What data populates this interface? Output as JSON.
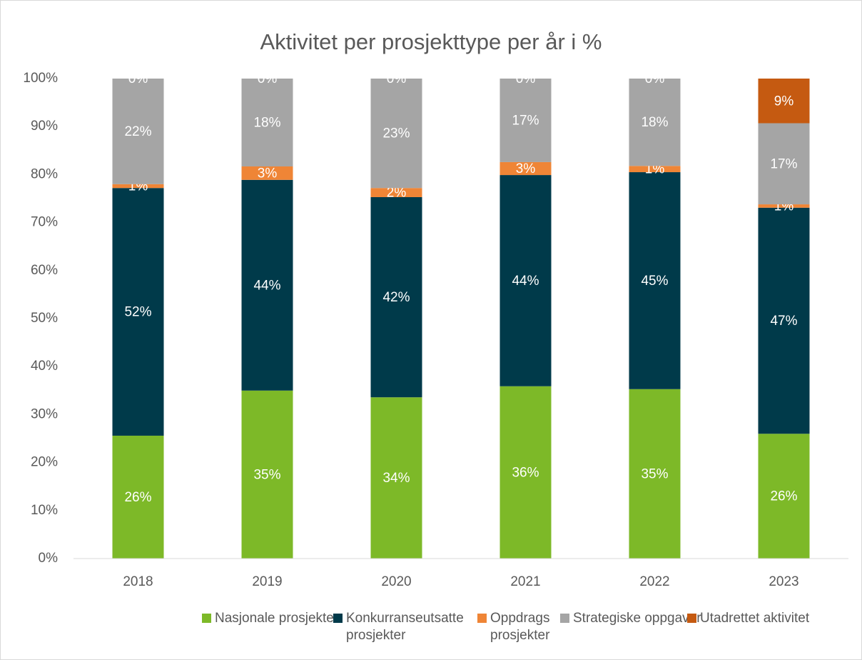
{
  "chart_data": {
    "type": "stacked_bar",
    "title": "Aktivitet per prosjekttype per år i %",
    "categories": [
      "2018",
      "2019",
      "2020",
      "2021",
      "2022",
      "2023"
    ],
    "series": [
      {
        "name": "Nasjonale prosjekter",
        "color": "#7db928",
        "values": [
          25.6,
          35.0,
          33.6,
          35.9,
          35.3,
          26.0
        ],
        "value_labels": [
          "26%",
          "35%",
          "34%",
          "36%",
          "35%",
          "26%"
        ]
      },
      {
        "name": "Konkurranseutsatte prosjekter",
        "color": "#003a4a",
        "values": [
          51.6,
          43.9,
          41.7,
          44.0,
          45.2,
          47.1
        ],
        "value_labels": [
          "52%",
          "44%",
          "42%",
          "44%",
          "45%",
          "47%"
        ]
      },
      {
        "name": "Oppdrags prosjekter",
        "color": "#ef8536",
        "values": [
          0.8,
          2.8,
          1.9,
          2.7,
          1.3,
          0.7
        ],
        "value_labels": [
          "1%",
          "3%",
          "2%",
          "3%",
          "1%",
          "1%"
        ]
      },
      {
        "name": "Strategiske oppgaver",
        "color": "#a5a5a5",
        "values": [
          22.0,
          18.3,
          22.8,
          17.4,
          18.2,
          16.9
        ],
        "value_labels": [
          "22%",
          "18%",
          "23%",
          "17%",
          "18%",
          "17%"
        ]
      },
      {
        "name": "Utadrettet aktivitet",
        "color": "#c55a11",
        "values": [
          0,
          0,
          0,
          0,
          0,
          9.3
        ],
        "value_labels": [
          "0%",
          "0%",
          "0%",
          "0%",
          "0%",
          "9%"
        ]
      }
    ],
    "ylim": [
      0,
      100
    ],
    "yticks": [
      {
        "value": 0,
        "label": "0%"
      },
      {
        "value": 10,
        "label": "10%"
      },
      {
        "value": 20,
        "label": "20%"
      },
      {
        "value": 30,
        "label": "30%"
      },
      {
        "value": 40,
        "label": "40%"
      },
      {
        "value": 50,
        "label": "50%"
      },
      {
        "value": 60,
        "label": "60%"
      },
      {
        "value": 70,
        "label": "70%"
      },
      {
        "value": 80,
        "label": "80%"
      },
      {
        "value": 90,
        "label": "90%"
      },
      {
        "value": 100,
        "label": "100%"
      }
    ],
    "grid": false,
    "legend": "bottom"
  }
}
